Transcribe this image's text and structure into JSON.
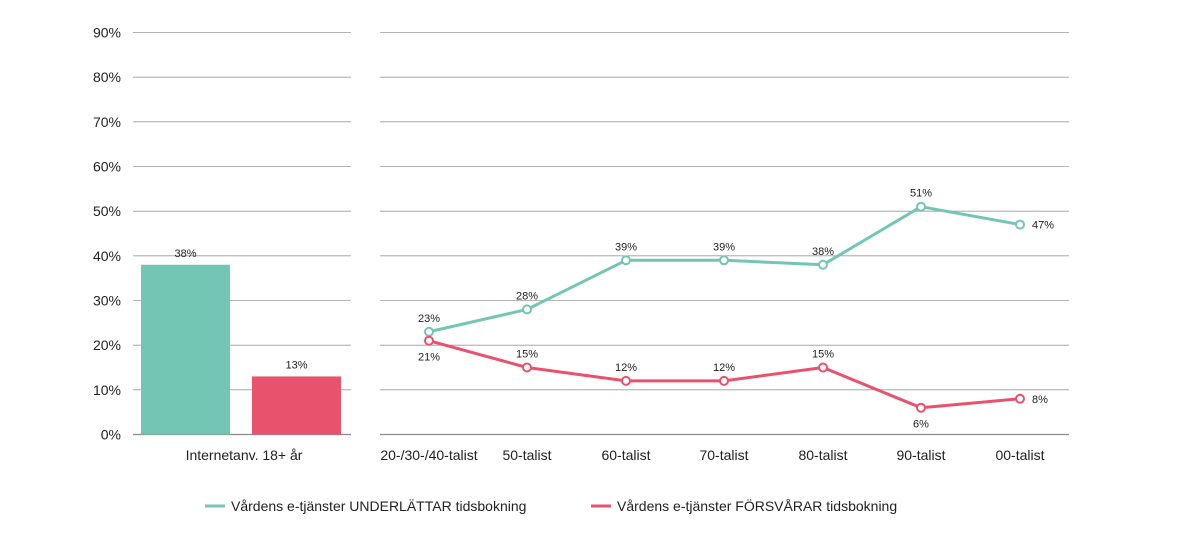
{
  "chart_data": {
    "type": "bar+line",
    "ylim": [
      0,
      90
    ],
    "yticks": [
      0,
      10,
      20,
      30,
      40,
      50,
      60,
      70,
      80,
      90
    ],
    "ytick_labels": [
      "0%",
      "10%",
      "20%",
      "30%",
      "40%",
      "50%",
      "60%",
      "70%",
      "80%",
      "90%"
    ],
    "grid": true,
    "legend_position": "bottom-center",
    "bar_panel": {
      "category": "Internetanv. 18+ år",
      "bars": [
        {
          "series": "Vårdens e-tjänster UNDERLÄTTAR tidsbokning",
          "value": 38,
          "label": "38%"
        },
        {
          "series": "Vårdens e-tjänster FÖRSVÅRAR tidsbokning",
          "value": 13,
          "label": "13%"
        }
      ]
    },
    "line_panel": {
      "categories": [
        "20-/30-/40-talist",
        "50-talist",
        "60-talist",
        "70-talist",
        "80-talist",
        "90-talist",
        "00-talist"
      ],
      "series": [
        {
          "name": "Vårdens e-tjänster UNDERLÄTTAR tidsbokning",
          "color": "#72c6b3",
          "values": [
            23,
            28,
            39,
            39,
            38,
            51,
            47
          ],
          "labels": [
            "23%",
            "28%",
            "39%",
            "39%",
            "38%",
            "51%",
            "47%"
          ]
        },
        {
          "name": "Vårdens e-tjänster FÖRSVÅRAR tidsbokning",
          "color": "#e8526d",
          "values": [
            21,
            15,
            12,
            12,
            15,
            6,
            8
          ],
          "labels": [
            "21%",
            "15%",
            "12%",
            "12%",
            "15%",
            "6%",
            "8%"
          ]
        }
      ]
    },
    "legend": [
      {
        "label": "Vårdens e-tjänster UNDERLÄTTAR tidsbokning",
        "color": "#72c6b3"
      },
      {
        "label": "Vårdens e-tjänster FÖRSVÅRAR tidsbokning",
        "color": "#e8526d"
      }
    ]
  }
}
